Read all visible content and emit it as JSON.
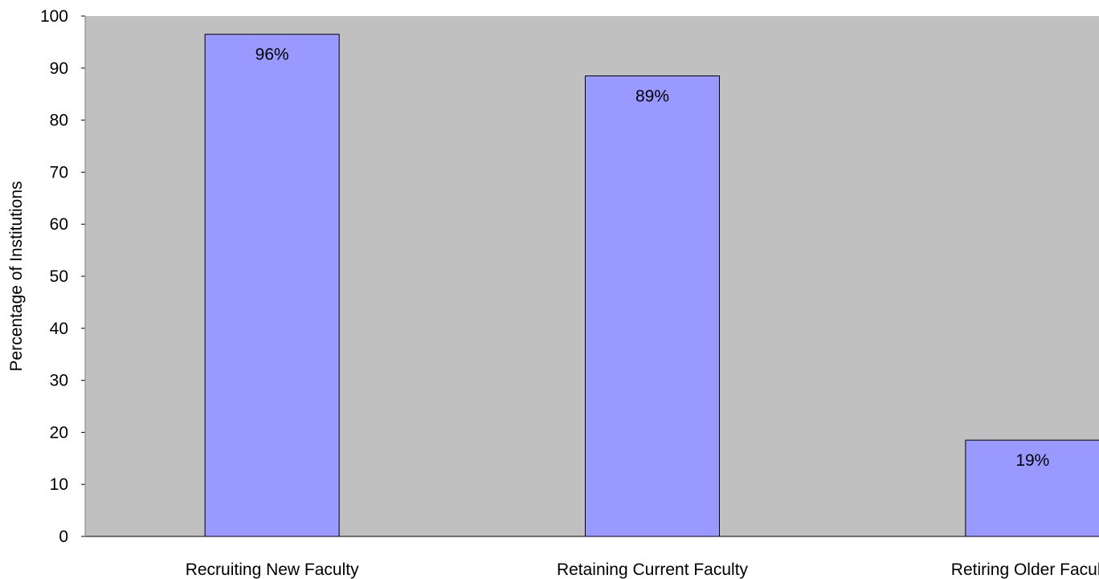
{
  "chart_data": {
    "type": "bar",
    "title": "",
    "xlabel": "",
    "ylabel": "Percentage of Institutions",
    "categories": [
      "Recruiting New Faculty",
      "Retaining Current Faculty",
      "Retiring Older Faculty"
    ],
    "values": [
      96.5,
      88.5,
      18.5
    ],
    "data_labels": [
      "96%",
      "89%",
      "19%"
    ],
    "yticks": [
      0,
      10,
      20,
      30,
      40,
      50,
      60,
      70,
      80,
      90,
      100
    ],
    "ylim": [
      0,
      100
    ],
    "grid": false,
    "legend": "none",
    "colors": {
      "plot_background": "#c0c0c0",
      "bar_fill": "#9999ff",
      "bar_stroke": "#000000"
    }
  }
}
